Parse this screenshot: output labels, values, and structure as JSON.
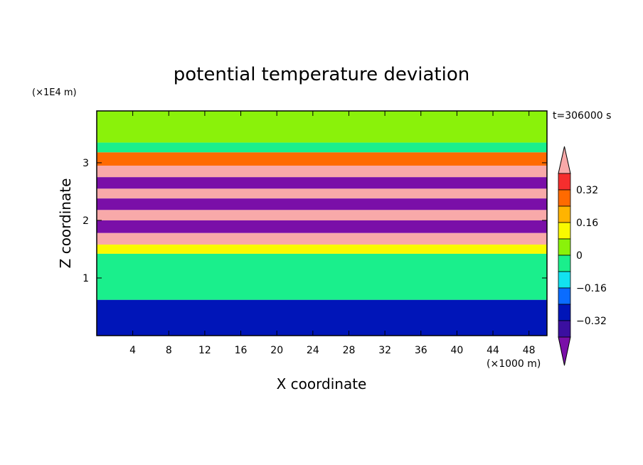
{
  "chart_data": {
    "type": "heatmap",
    "title": "potential temperature deviation",
    "xlabel": "X coordinate",
    "ylabel": "Z coordinate",
    "x_unit": "(×1000 m)",
    "y_unit": "(×1E4 m)",
    "time_label": "t=306000 s",
    "xlim": [
      0,
      50
    ],
    "ylim": [
      0,
      3.9
    ],
    "x_ticks": [
      4,
      8,
      12,
      16,
      20,
      24,
      28,
      32,
      36,
      40,
      44,
      48
    ],
    "y_ticks": [
      1,
      2,
      3
    ],
    "colorbar": {
      "levels": [
        -0.4,
        -0.32,
        -0.24,
        -0.16,
        -0.08,
        0,
        0.08,
        0.16,
        0.24,
        0.32,
        0.4
      ],
      "labels": [
        "0.32",
        "0.16",
        "0",
        "−0.16",
        "−0.32"
      ],
      "label_values": [
        0.32,
        0.16,
        0,
        -0.16,
        -0.32
      ],
      "colors": [
        "#7a0fa8",
        "#3b0fa0",
        "#0015b8",
        "#0a6cff",
        "#12e2f0",
        "#1aef8c",
        "#8af20a",
        "#fafa00",
        "#ffb400",
        "#ff6a00",
        "#f52e2e",
        "#f8a9a9"
      ],
      "extend": "both"
    },
    "bands": [
      {
        "z0": 3.35,
        "z1": 3.9,
        "value": 0.04
      },
      {
        "z0": 3.18,
        "z1": 3.35,
        "value": -0.05
      },
      {
        "z0": 2.95,
        "z1": 3.18,
        "value": 0.26
      },
      {
        "z0": 2.75,
        "z1": 2.95,
        "value": 0.44
      },
      {
        "z0": 2.55,
        "z1": 2.75,
        "value": -0.44
      },
      {
        "z0": 2.38,
        "z1": 2.55,
        "value": 0.44
      },
      {
        "z0": 2.18,
        "z1": 2.38,
        "value": -0.44
      },
      {
        "z0": 2.0,
        "z1": 2.18,
        "value": 0.44
      },
      {
        "z0": 1.78,
        "z1": 2.0,
        "value": -0.44
      },
      {
        "z0": 1.58,
        "z1": 1.78,
        "value": 0.44
      },
      {
        "z0": 1.42,
        "z1": 1.58,
        "value": 0.1
      },
      {
        "z0": 0.62,
        "z1": 1.42,
        "value": -0.02
      },
      {
        "z0": 0.0,
        "z1": 0.62,
        "value": -0.28
      }
    ]
  }
}
